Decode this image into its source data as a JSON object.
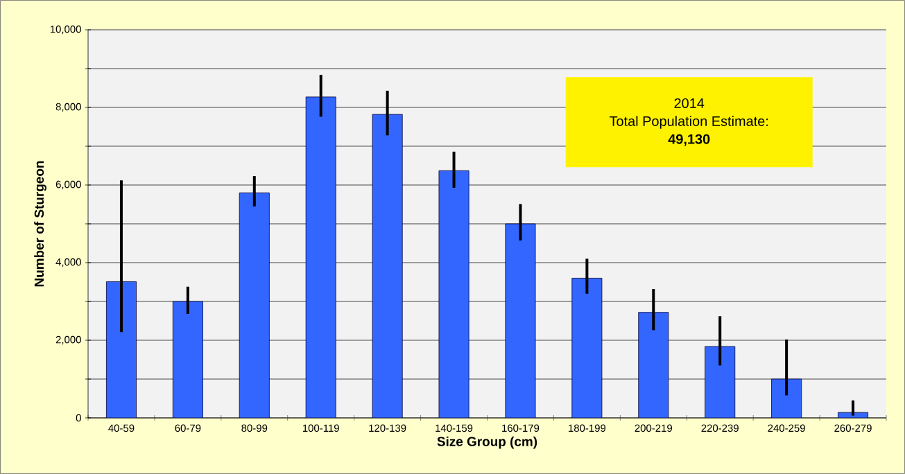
{
  "chart_data": {
    "type": "bar",
    "xlabel": "Size Group (cm)",
    "ylabel": "Number of Sturgeon",
    "categories": [
      "40-59",
      "60-79",
      "80-99",
      "100-119",
      "120-139",
      "140-159",
      "160-179",
      "180-199",
      "200-219",
      "220-239",
      "240-259",
      "260-279"
    ],
    "values": [
      3510,
      3000,
      5800,
      8270,
      7820,
      6370,
      5000,
      3600,
      2720,
      1840,
      1000,
      140
    ],
    "errors": [
      [
        2210,
        6120
      ],
      [
        2680,
        3380
      ],
      [
        5450,
        6230
      ],
      [
        7760,
        8840
      ],
      [
        7280,
        8430
      ],
      [
        5930,
        6860
      ],
      [
        4570,
        5510
      ],
      [
        3200,
        4100
      ],
      [
        2260,
        3320
      ],
      [
        1350,
        2620
      ],
      [
        580,
        2020
      ],
      [
        60,
        450
      ]
    ],
    "color": "#3366ff",
    "ylim": [
      0,
      10000
    ],
    "yticks": [
      0,
      {
        "value": 1000,
        "label": null
      },
      {
        "value": 2000,
        "label": "2,000"
      },
      {
        "value": 3000,
        "label": null
      },
      {
        "value": 4000,
        "label": "4,000"
      },
      {
        "value": 5000,
        "label": null
      },
      {
        "value": 6000,
        "label": "6,000"
      },
      {
        "value": 7000,
        "label": null
      },
      {
        "value": 8000,
        "label": "8,000"
      },
      {
        "value": 9000,
        "label": null
      },
      {
        "value": 10000,
        "label": "10,000"
      }
    ],
    "grid": "y",
    "annotations": [
      "2014",
      "Total Population Estimate:",
      "49,130"
    ]
  }
}
